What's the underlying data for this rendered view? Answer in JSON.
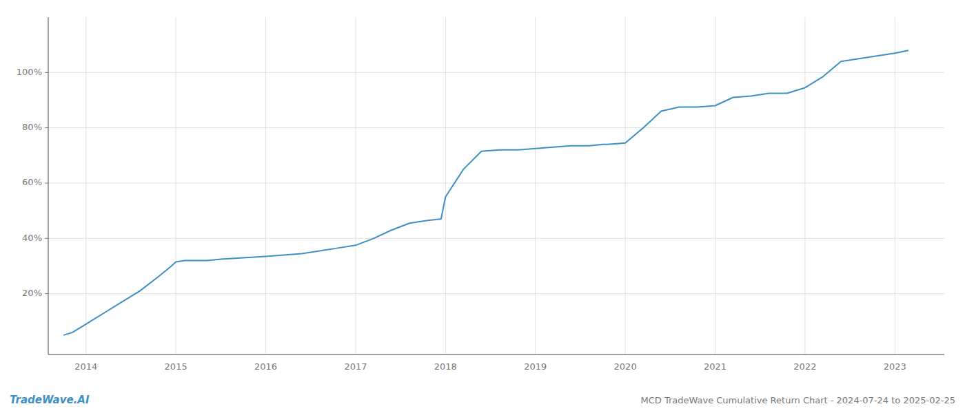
{
  "chart_data": {
    "type": "line",
    "title": "MCD TradeWave Cumulative Return Chart - 2024-07-24 to 2025-02-25",
    "annotations": [
      "TradeWave.AI"
    ],
    "color": "#3d8fc4",
    "x": [
      2013.75,
      2013.85,
      2014.0,
      2014.2,
      2014.4,
      2014.6,
      2014.8,
      2014.95,
      2015.0,
      2015.1,
      2015.2,
      2015.35,
      2015.5,
      2015.75,
      2016.0,
      2016.2,
      2016.4,
      2016.6,
      2016.8,
      2017.0,
      2017.2,
      2017.4,
      2017.6,
      2017.8,
      2017.95,
      2018.0,
      2018.2,
      2018.4,
      2018.6,
      2018.8,
      2019.0,
      2019.2,
      2019.4,
      2019.6,
      2019.75,
      2019.8,
      2020.0,
      2020.2,
      2020.4,
      2020.6,
      2020.8,
      2021.0,
      2021.2,
      2021.4,
      2021.5,
      2021.6,
      2021.8,
      2022.0,
      2022.2,
      2022.4,
      2022.6,
      2022.8,
      2023.0,
      2023.15
    ],
    "values": [
      0.05,
      0.06,
      0.09,
      0.13,
      0.17,
      0.21,
      0.26,
      0.3,
      0.315,
      0.32,
      0.32,
      0.32,
      0.325,
      0.33,
      0.335,
      0.34,
      0.345,
      0.355,
      0.365,
      0.375,
      0.4,
      0.43,
      0.455,
      0.465,
      0.47,
      0.55,
      0.65,
      0.715,
      0.72,
      0.72,
      0.725,
      0.73,
      0.735,
      0.735,
      0.74,
      0.74,
      0.745,
      0.8,
      0.86,
      0.875,
      0.875,
      0.88,
      0.91,
      0.915,
      0.92,
      0.925,
      0.925,
      0.945,
      0.985,
      1.04,
      1.05,
      1.06,
      1.07,
      1.08
    ],
    "xlim": [
      2013.58,
      2023.55
    ],
    "ylim": [
      -0.02,
      1.2
    ],
    "xticks": [
      2014,
      2015,
      2016,
      2017,
      2018,
      2019,
      2020,
      2021,
      2022,
      2023
    ],
    "yticks": [
      {
        "value": 0.2,
        "label": "20%"
      },
      {
        "value": 0.4,
        "label": "40%"
      },
      {
        "value": 0.6,
        "label": "60%"
      },
      {
        "value": 0.8,
        "label": "80%"
      },
      {
        "value": 1.0,
        "label": "100%"
      }
    ],
    "grid": true
  }
}
